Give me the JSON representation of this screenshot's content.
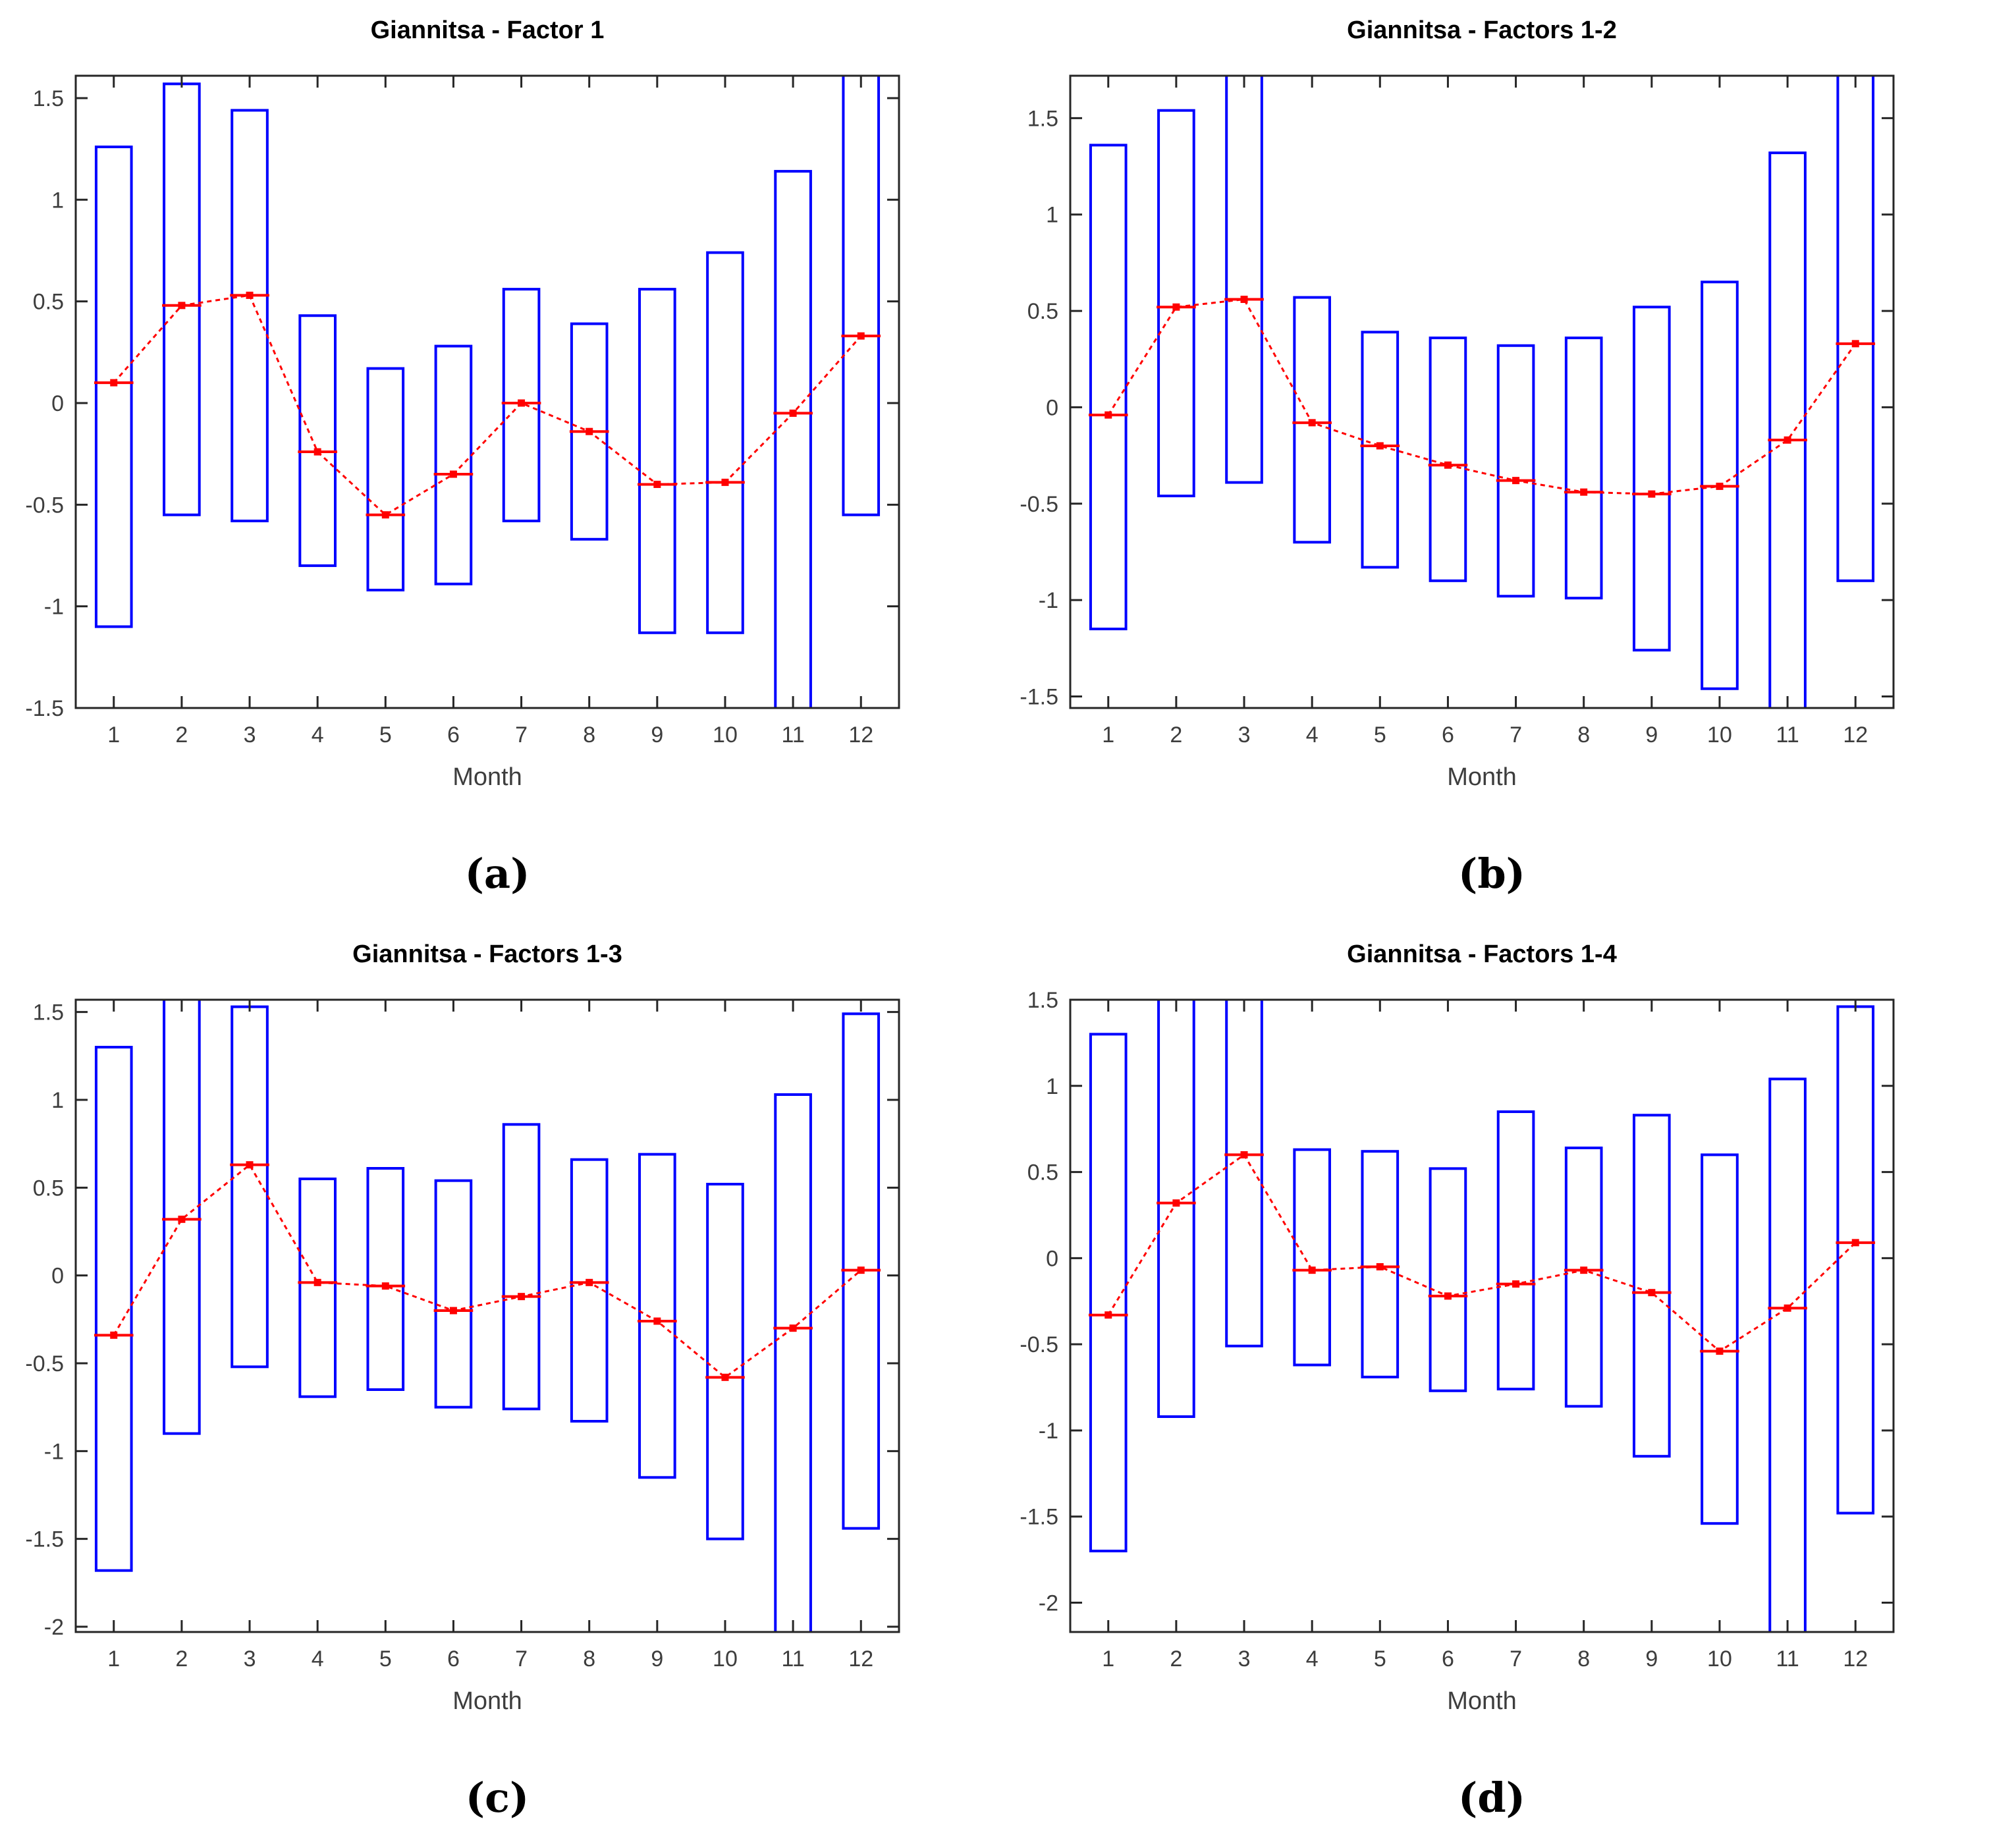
{
  "page": {
    "background": "#ffffff"
  },
  "style": {
    "box_color": "#0000ff",
    "mean_color": "#ff0000",
    "axis_color": "#262626",
    "tick_label_color": "#3d3d3d",
    "title_color": "#000000"
  },
  "legend_note": "null bound = box edge extends beyond the axis range (clipped at plot border)",
  "chart_data": [
    {
      "type": "bar",
      "subtype": "range-box-with-mean-line",
      "title": "Giannitsa - Factor 1",
      "caption": "(a)",
      "xlabel": "Month",
      "x": [
        1,
        2,
        3,
        4,
        5,
        6,
        7,
        8,
        9,
        10,
        11,
        12
      ],
      "x_tick_labels": [
        "1",
        "2",
        "3",
        "4",
        "5",
        "6",
        "7",
        "8",
        "9",
        "10",
        "11",
        "12"
      ],
      "y_tick_labels": [
        "1.5",
        "1",
        "0.5",
        "0",
        "-0.5",
        "-1",
        "-1.5"
      ],
      "ylim": [
        -1.5,
        1.61
      ],
      "series": [
        {
          "name": "box_upper",
          "values": [
            1.26,
            1.57,
            1.44,
            0.43,
            0.17,
            0.28,
            0.56,
            0.39,
            0.56,
            0.74,
            1.14,
            null
          ]
        },
        {
          "name": "box_lower",
          "values": [
            -1.1,
            -0.55,
            -0.58,
            -0.8,
            -0.92,
            -0.89,
            -0.58,
            -0.67,
            -1.13,
            -1.13,
            null,
            -0.55
          ]
        },
        {
          "name": "mean",
          "values": [
            0.1,
            0.48,
            0.53,
            -0.24,
            -0.55,
            -0.35,
            0.0,
            -0.14,
            -0.4,
            -0.39,
            -0.05,
            0.33
          ]
        }
      ]
    },
    {
      "type": "bar",
      "subtype": "range-box-with-mean-line",
      "title": "Giannitsa - Factors 1-2",
      "caption": "(b)",
      "xlabel": "Month",
      "x": [
        1,
        2,
        3,
        4,
        5,
        6,
        7,
        8,
        9,
        10,
        11,
        12
      ],
      "x_tick_labels": [
        "1",
        "2",
        "3",
        "4",
        "5",
        "6",
        "7",
        "8",
        "9",
        "10",
        "11",
        "12"
      ],
      "y_tick_labels": [
        "1.5",
        "1",
        "0.5",
        "0",
        "-0.5",
        "-1",
        "-1.5"
      ],
      "ylim": [
        -1.56,
        1.72
      ],
      "series": [
        {
          "name": "box_upper",
          "values": [
            1.36,
            1.54,
            null,
            0.57,
            0.39,
            0.36,
            0.32,
            0.36,
            0.52,
            0.65,
            1.32,
            null
          ]
        },
        {
          "name": "box_lower",
          "values": [
            -1.15,
            -0.46,
            -0.39,
            -0.7,
            -0.83,
            -0.9,
            -0.98,
            -0.99,
            -1.26,
            -1.46,
            null,
            -0.9
          ]
        },
        {
          "name": "mean",
          "values": [
            -0.04,
            0.52,
            0.56,
            -0.08,
            -0.2,
            -0.3,
            -0.38,
            -0.44,
            -0.45,
            -0.41,
            -0.17,
            0.33
          ]
        }
      ]
    },
    {
      "type": "bar",
      "subtype": "range-box-with-mean-line",
      "title": "Giannitsa - Factors 1-3",
      "caption": "(c)",
      "xlabel": "Month",
      "x": [
        1,
        2,
        3,
        4,
        5,
        6,
        7,
        8,
        9,
        10,
        11,
        12
      ],
      "x_tick_labels": [
        "1",
        "2",
        "3",
        "4",
        "5",
        "6",
        "7",
        "8",
        "9",
        "10",
        "11",
        "12"
      ],
      "y_tick_labels": [
        "1.5",
        "1",
        "0.5",
        "0",
        "-0.5",
        "-1",
        "-1.5",
        "-2"
      ],
      "ylim": [
        -2.03,
        1.57
      ],
      "series": [
        {
          "name": "box_upper",
          "values": [
            1.3,
            null,
            1.53,
            0.55,
            0.61,
            0.54,
            0.86,
            0.66,
            0.69,
            0.52,
            1.03,
            1.49
          ]
        },
        {
          "name": "box_lower",
          "values": [
            -1.68,
            -0.9,
            -0.52,
            -0.69,
            -0.65,
            -0.75,
            -0.76,
            -0.83,
            -1.15,
            -1.5,
            null,
            -1.44
          ]
        },
        {
          "name": "mean",
          "values": [
            -0.34,
            0.32,
            0.63,
            -0.04,
            -0.06,
            -0.2,
            -0.12,
            -0.04,
            -0.26,
            -0.58,
            -0.3,
            0.03
          ]
        }
      ]
    },
    {
      "type": "bar",
      "subtype": "range-box-with-mean-line",
      "title": "Giannitsa - Factors 1-4",
      "caption": "(d)",
      "xlabel": "Month",
      "x": [
        1,
        2,
        3,
        4,
        5,
        6,
        7,
        8,
        9,
        10,
        11,
        12
      ],
      "x_tick_labels": [
        "1",
        "2",
        "3",
        "4",
        "5",
        "6",
        "7",
        "8",
        "9",
        "10",
        "11",
        "12"
      ],
      "y_tick_labels": [
        "1.5",
        "1",
        "0.5",
        "0",
        "-0.5",
        "-1",
        "-1.5",
        "-2"
      ],
      "ylim": [
        -2.17,
        1.5
      ],
      "series": [
        {
          "name": "box_upper",
          "values": [
            1.3,
            null,
            null,
            0.63,
            0.62,
            0.52,
            0.85,
            0.64,
            0.83,
            0.6,
            1.04,
            1.46
          ]
        },
        {
          "name": "box_lower",
          "values": [
            -1.7,
            -0.92,
            -0.51,
            -0.62,
            -0.69,
            -0.77,
            -0.76,
            -0.86,
            -1.15,
            -1.54,
            null,
            -1.48
          ]
        },
        {
          "name": "mean",
          "values": [
            -0.33,
            0.32,
            0.6,
            -0.07,
            -0.05,
            -0.22,
            -0.15,
            -0.07,
            -0.2,
            -0.54,
            -0.29,
            0.09
          ]
        }
      ]
    }
  ]
}
